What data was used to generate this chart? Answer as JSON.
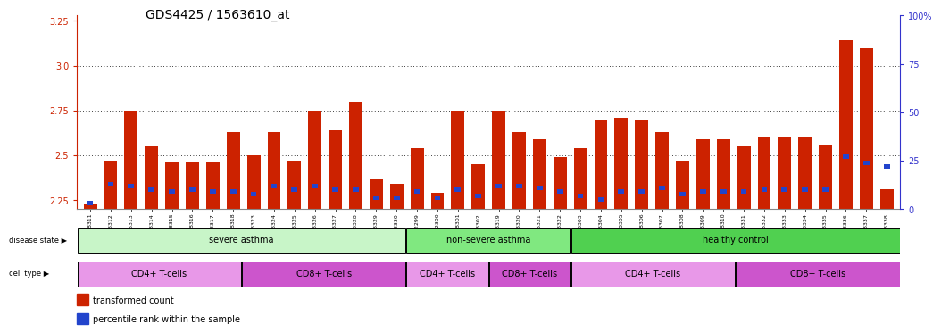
{
  "title": "GDS4425 / 1563610_at",
  "samples": [
    "GSM788311",
    "GSM788312",
    "GSM788313",
    "GSM788314",
    "GSM788315",
    "GSM788316",
    "GSM788317",
    "GSM788318",
    "GSM788323",
    "GSM788324",
    "GSM788325",
    "GSM788326",
    "GSM788327",
    "GSM788328",
    "GSM788329",
    "GSM788330",
    "GSM7882299",
    "GSM7882300",
    "GSM788301",
    "GSM788302",
    "GSM788319",
    "GSM788320",
    "GSM788321",
    "GSM788322",
    "GSM788303",
    "GSM788304",
    "GSM788305",
    "GSM788306",
    "GSM788307",
    "GSM788308",
    "GSM788309",
    "GSM788310",
    "GSM788331",
    "GSM788332",
    "GSM788333",
    "GSM788334",
    "GSM788335",
    "GSM788336",
    "GSM788337",
    "GSM788338"
  ],
  "red_values": [
    2.225,
    2.47,
    2.75,
    2.55,
    2.46,
    2.46,
    2.46,
    2.63,
    2.5,
    2.63,
    2.47,
    2.75,
    2.64,
    2.8,
    2.37,
    2.34,
    2.54,
    2.29,
    2.75,
    2.45,
    2.75,
    2.63,
    2.59,
    2.49,
    2.54,
    2.7,
    2.71,
    2.7,
    2.63,
    2.47,
    2.59,
    2.59,
    2.55,
    2.6,
    2.6,
    2.6,
    2.56,
    3.14,
    3.1,
    2.31
  ],
  "blue_percentile": [
    3,
    13,
    12,
    10,
    9,
    10,
    9,
    9,
    8,
    12,
    10,
    12,
    10,
    10,
    6,
    6,
    9,
    6,
    10,
    7,
    12,
    12,
    11,
    9,
    7,
    5,
    9,
    9,
    11,
    8,
    9,
    9,
    9,
    10,
    10,
    10,
    10,
    27,
    24,
    22
  ],
  "ylim_left": [
    2.2,
    3.28
  ],
  "ylim_right": [
    0,
    100
  ],
  "yticks_left": [
    2.25,
    2.5,
    2.75,
    3.0,
    3.25
  ],
  "yticks_right": [
    0,
    25,
    50,
    75,
    100
  ],
  "disease_groups": [
    {
      "label": "severe asthma",
      "start": 0,
      "end": 16,
      "color": "#c8f5c8"
    },
    {
      "label": "non-severe asthma",
      "start": 16,
      "end": 24,
      "color": "#80e880"
    },
    {
      "label": "healthy control",
      "start": 24,
      "end": 40,
      "color": "#50d050"
    }
  ],
  "cell_groups": [
    {
      "label": "CD4+ T-cells",
      "start": 0,
      "end": 8,
      "color": "#e898e8"
    },
    {
      "label": "CD8+ T-cells",
      "start": 8,
      "end": 16,
      "color": "#cc55cc"
    },
    {
      "label": "CD4+ T-cells",
      "start": 16,
      "end": 20,
      "color": "#e898e8"
    },
    {
      "label": "CD8+ T-cells",
      "start": 20,
      "end": 24,
      "color": "#cc55cc"
    },
    {
      "label": "CD4+ T-cells",
      "start": 24,
      "end": 32,
      "color": "#e898e8"
    },
    {
      "label": "CD8+ T-cells",
      "start": 32,
      "end": 40,
      "color": "#cc55cc"
    }
  ],
  "bar_color": "#cc2200",
  "blue_color": "#2244cc",
  "tick_color_left": "#cc2200",
  "tick_color_right": "#3333cc",
  "title_fontsize": 10,
  "bar_width": 0.65
}
